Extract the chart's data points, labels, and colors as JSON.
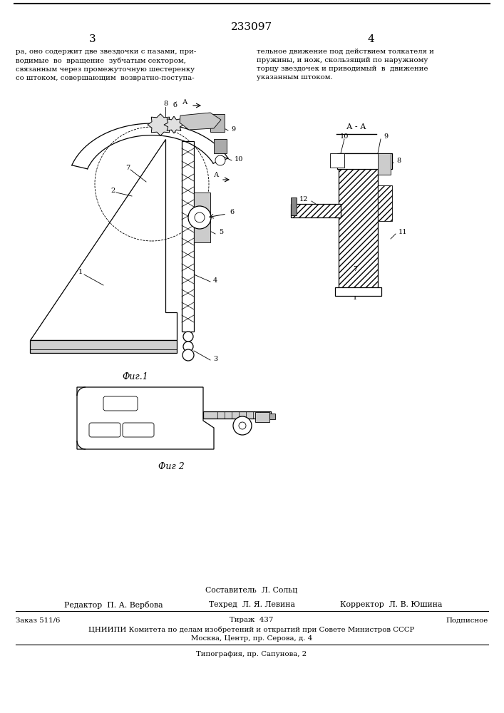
{
  "patent_number": "233097",
  "page_left": "3",
  "page_right": "4",
  "text_left": "ра, оно содержит две звездочки с пазами, при-\nводимые  во  вращение  зубчатым сектором,\nсвязанным через промежуточную шестеренку\nсо штоком, совершающим  возвратно-поступа-",
  "text_right": "тельное движение под действием толкателя и\nпружины, и нож, скользящий по наружному\nторцу звездочек и приводимый  в  движение\nуказанным штоком.",
  "fig1_label": "Фиг.1",
  "fig2_label": "Фиг 2",
  "footer_compiler": "Составитель  Л. Сольц",
  "footer_editor": "Редактор  П. А. Вербова",
  "footer_tech": "Техред  Л. Я. Левина",
  "footer_corrector": "Корректор  Л. В. Юшина",
  "footer_order": "Заказ 511/6",
  "footer_print": "Тираж  437",
  "footer_signed": "Подписное",
  "footer_org": "ЦНИИПИ Комитета по делам изобретений и открытий при Совете Министров СССР",
  "footer_address": "Москва, Центр, пр. Серова, д. 4",
  "footer_typography": "Типография, пр. Сапунова, 2",
  "bg_color": "#ffffff"
}
